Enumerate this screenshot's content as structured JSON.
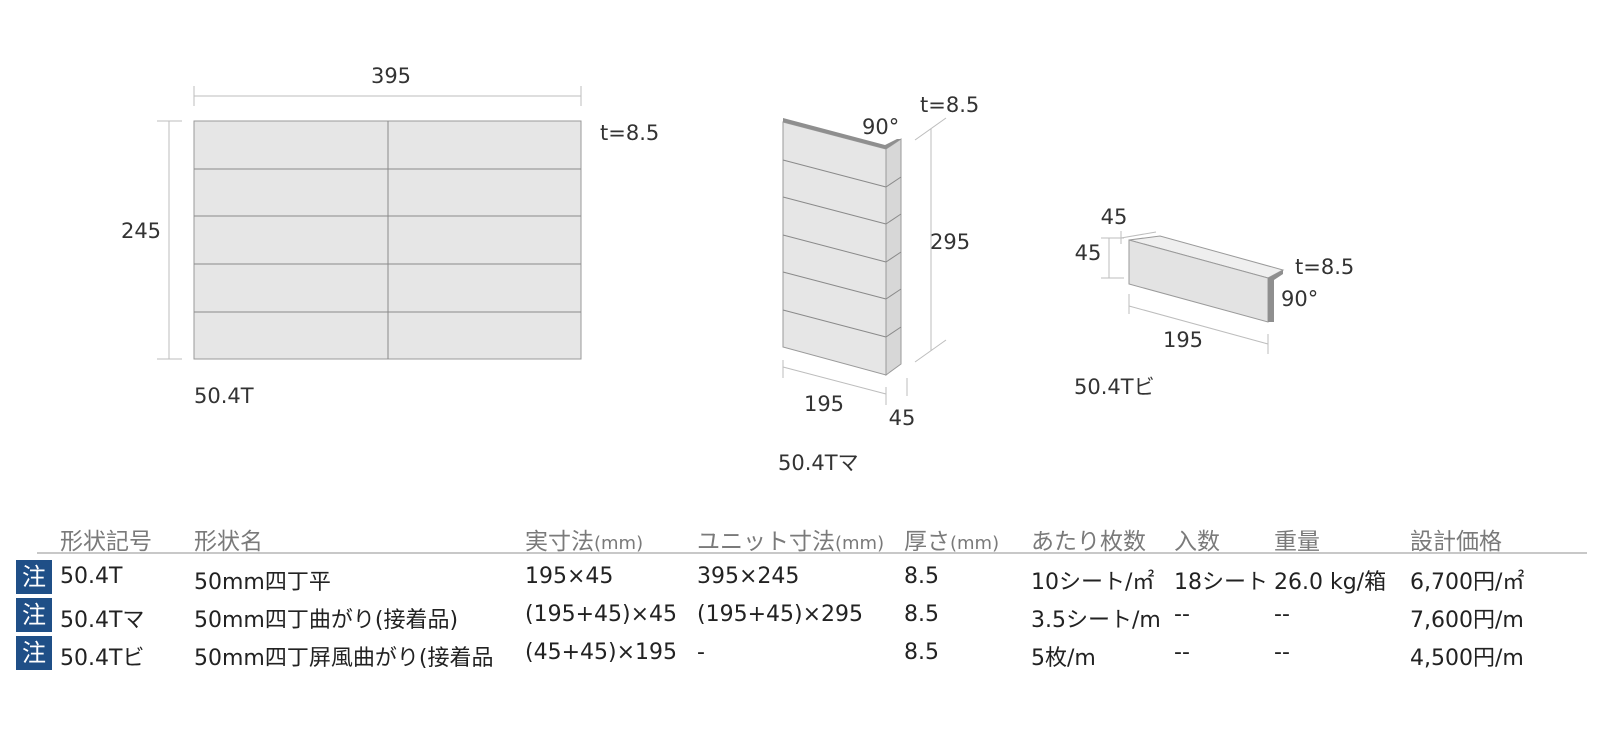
{
  "drawings": {
    "flat": {
      "width_label": "395",
      "height_label": "245",
      "thickness_label": "t=8.5",
      "shape_code": "50.4T"
    },
    "corner": {
      "angle_label": "90°",
      "thickness_label": "t=8.5",
      "height_label": "295",
      "length_label": "195",
      "return_label": "45",
      "shape_code": "50.4Tマ"
    },
    "screen": {
      "top_label": "45",
      "side_label": "45",
      "thickness_label": "t=8.5",
      "angle_label": "90°",
      "length_label": "195",
      "shape_code": "50.4Tビ"
    }
  },
  "table": {
    "headers": {
      "code": "形状記号",
      "name": "形状名",
      "actual": "実寸法",
      "actual_unit": "(mm)",
      "unit_size": "ユニット寸法",
      "unit_size_unit": "(mm)",
      "thickness": "厚さ",
      "thickness_unit": "(mm)",
      "per_area": "あたり枚数",
      "pack": "入数",
      "weight": "重量",
      "price": "設計価格"
    },
    "note_badge": "注",
    "rows": [
      {
        "code": "50.4T",
        "name": "50mm四丁平",
        "actual": "195×45",
        "unit_size": "395×245",
        "thickness": "8.5",
        "per_area": "10シート/㎡",
        "pack": "18シート",
        "weight": "26.0 kg/箱",
        "price": "6,700円/㎡"
      },
      {
        "code": "50.4Tマ",
        "name": "50mm四丁曲がり(接着品)",
        "actual": "(195+45)×45",
        "unit_size": "(195+45)×295",
        "thickness": "8.5",
        "per_area": "3.5シート/m",
        "pack": "--",
        "weight": "--",
        "price": "7,600円/m"
      },
      {
        "code": "50.4Tビ",
        "name": "50mm四丁屏風曲がり(接着品",
        "actual": "(45+45)×195",
        "unit_size": "-",
        "thickness": "8.5",
        "per_area": "5枚/m",
        "pack": "--",
        "weight": "--",
        "price": "4,500円/m"
      }
    ]
  }
}
